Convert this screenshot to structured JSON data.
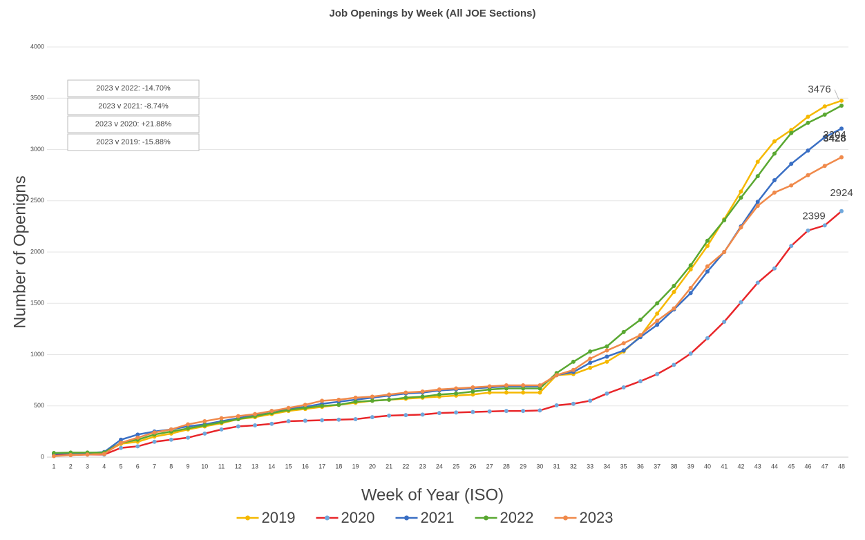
{
  "chart_data": {
    "type": "line",
    "title": "Job Openings by Week (All JOE Sections)",
    "x_label": "Week of Year (ISO)",
    "y_label": "Number of Openigns",
    "categories": [
      "1",
      "2",
      "3",
      "4",
      "5",
      "6",
      "7",
      "8",
      "9",
      "10",
      "11",
      "12",
      "13",
      "14",
      "15",
      "16",
      "17",
      "18",
      "19",
      "20",
      "21",
      "22",
      "23",
      "24",
      "25",
      "26",
      "27",
      "28",
      "29",
      "30",
      "31",
      "32",
      "33",
      "34",
      "35",
      "36",
      "37",
      "38",
      "39",
      "40",
      "41",
      "42",
      "43",
      "44",
      "45",
      "46",
      "47",
      "48"
    ],
    "series": [
      {
        "name": "2019",
        "color": "#f5b800",
        "marker_color": "#f5b800",
        "values": [
          30,
          35,
          40,
          40,
          130,
          150,
          200,
          230,
          270,
          300,
          330,
          370,
          390,
          420,
          450,
          470,
          490,
          510,
          530,
          550,
          560,
          570,
          580,
          590,
          600,
          610,
          630,
          630,
          630,
          630,
          800,
          810,
          870,
          930,
          1030,
          1180,
          1400,
          1610,
          1830,
          2060,
          2320,
          2590,
          2880,
          3080,
          3190,
          3320,
          3420,
          3476
        ]
      },
      {
        "name": "2020",
        "color": "#e8262a",
        "marker_color": "#6fa8dc",
        "values": [
          20,
          20,
          25,
          25,
          90,
          105,
          150,
          170,
          190,
          230,
          270,
          300,
          310,
          325,
          350,
          355,
          360,
          365,
          370,
          390,
          405,
          410,
          415,
          430,
          435,
          440,
          445,
          450,
          450,
          455,
          505,
          520,
          550,
          620,
          680,
          740,
          810,
          900,
          1010,
          1160,
          1320,
          1510,
          1700,
          1840,
          2060,
          2210,
          2260,
          2399
        ]
      },
      {
        "name": "2021",
        "color": "#3a6fc4",
        "marker_color": "#3a6fc4",
        "values": [
          30,
          40,
          40,
          50,
          170,
          220,
          250,
          270,
          300,
          320,
          350,
          380,
          410,
          450,
          470,
          490,
          520,
          540,
          560,
          580,
          600,
          620,
          630,
          650,
          660,
          670,
          680,
          690,
          690,
          690,
          800,
          830,
          920,
          980,
          1040,
          1170,
          1290,
          1440,
          1600,
          1810,
          2000,
          2250,
          2490,
          2700,
          2860,
          2990,
          3120,
          3204
        ]
      },
      {
        "name": "2022",
        "color": "#5aa832",
        "marker_color": "#5aa832",
        "values": [
          40,
          45,
          45,
          45,
          140,
          170,
          220,
          250,
          280,
          310,
          340,
          370,
          400,
          430,
          460,
          480,
          500,
          510,
          540,
          550,
          560,
          580,
          590,
          610,
          620,
          640,
          660,
          670,
          670,
          670,
          820,
          930,
          1030,
          1080,
          1220,
          1340,
          1500,
          1670,
          1870,
          2110,
          2310,
          2530,
          2740,
          2960,
          3160,
          3260,
          3340,
          3428
        ]
      },
      {
        "name": "2023",
        "color": "#f08a4b",
        "marker_color": "#f08a4b",
        "values": [
          10,
          20,
          25,
          30,
          140,
          190,
          240,
          270,
          320,
          350,
          380,
          400,
          420,
          450,
          480,
          510,
          550,
          560,
          580,
          590,
          610,
          630,
          640,
          660,
          670,
          680,
          690,
          700,
          700,
          700,
          800,
          850,
          960,
          1040,
          1110,
          1190,
          1330,
          1450,
          1650,
          1860,
          2000,
          2240,
          2450,
          2580,
          2650,
          2750,
          2840,
          2924
        ]
      }
    ],
    "annotations": [
      "2023 v 2022: -14.70%",
      "2023 v 2021: -8.74%",
      "2023 v 2020: +21.88%",
      "2023 v 2019: -15.88%"
    ],
    "ylim": [
      0,
      4000
    ],
    "yticks": [
      0,
      500,
      1000,
      1500,
      2000,
      2500,
      3000,
      3500,
      4000
    ],
    "grid": true,
    "legend": "bottom"
  }
}
